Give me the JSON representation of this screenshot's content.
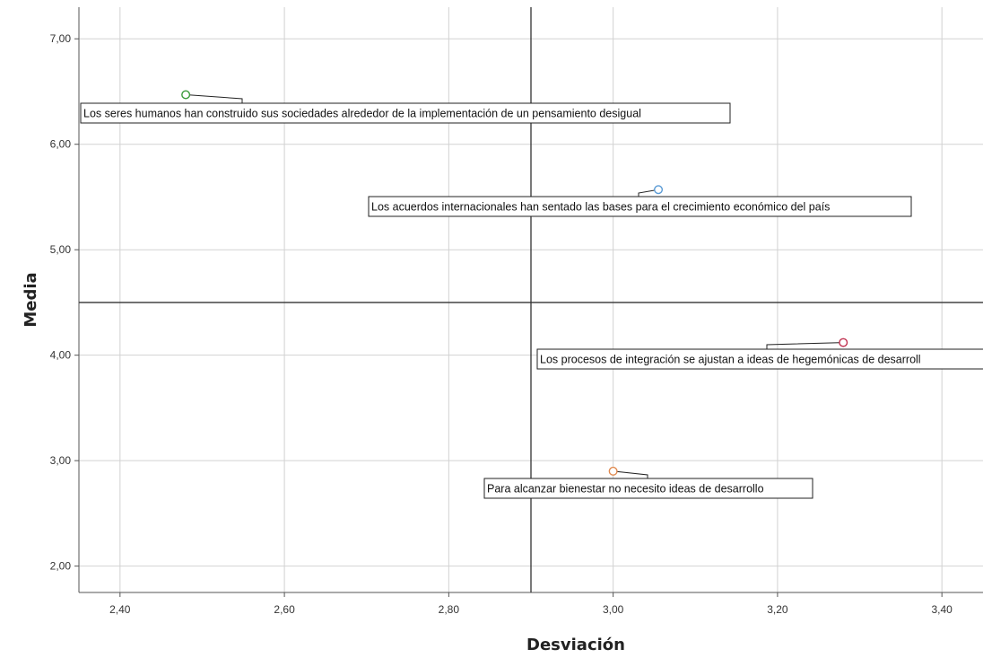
{
  "chart_data": {
    "type": "scatter",
    "title": "",
    "xlabel": "Desviación",
    "ylabel": "Media",
    "xlim": [
      2.35,
      3.45
    ],
    "ylim": [
      1.75,
      7.3
    ],
    "x_ticks": [
      "2,40",
      "2,60",
      "2,80",
      "3,00",
      "3,20",
      "3,40"
    ],
    "y_ticks": [
      "2,00",
      "3,00",
      "4,00",
      "5,00",
      "6,00",
      "7,00"
    ],
    "grid": true,
    "reference_lines": {
      "x": 2.9,
      "y": 4.5
    },
    "points": [
      {
        "label": "Los seres humanos han construido sus sociedades alrededor de la implementación de un pensamiento desigual",
        "x": 2.48,
        "y": 6.47,
        "color": "#3a9a3a"
      },
      {
        "label": "Los acuerdos internacionales han sentado las bases para el crecimiento económico del país",
        "x": 3.055,
        "y": 5.57,
        "color": "#5b9bd5"
      },
      {
        "label": "Los procesos de integración se ajustan a ideas de hegemónicas de desarroll",
        "x": 3.28,
        "y": 4.12,
        "color": "#c0304f"
      },
      {
        "label": "Para alcanzar bienestar no necesito ideas de desarrollo",
        "x": 3.0,
        "y": 2.9,
        "color": "#e08a50"
      }
    ]
  }
}
